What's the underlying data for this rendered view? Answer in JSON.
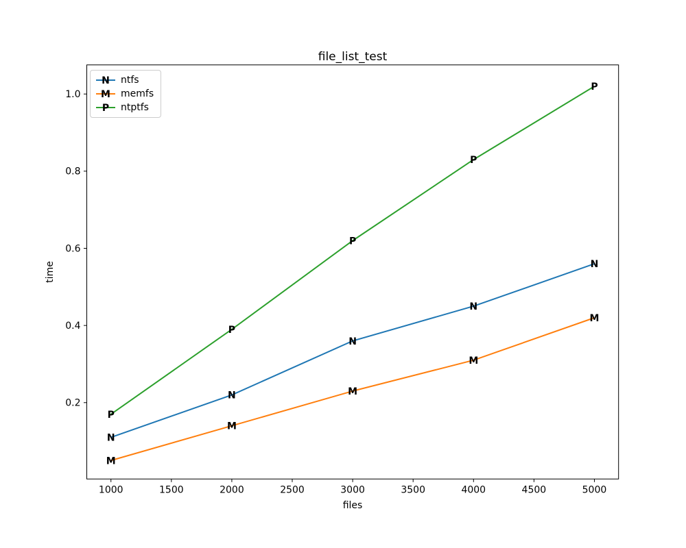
{
  "chart_data": {
    "type": "line",
    "title": "file_list_test",
    "xlabel": "files",
    "ylabel": "time",
    "x": [
      1000,
      2000,
      3000,
      4000,
      5000
    ],
    "series": [
      {
        "name": "ntfs",
        "marker": "N",
        "color": "#1f77b4",
        "values": [
          0.11,
          0.22,
          0.36,
          0.45,
          0.56
        ]
      },
      {
        "name": "memfs",
        "marker": "M",
        "color": "#ff7f0e",
        "values": [
          0.05,
          0.14,
          0.23,
          0.31,
          0.42
        ]
      },
      {
        "name": "ntptfs",
        "marker": "P",
        "color": "#2ca02c",
        "values": [
          0.17,
          0.39,
          0.62,
          0.83,
          1.02
        ]
      }
    ],
    "x_tick_values": [
      1000,
      1500,
      2000,
      2500,
      3000,
      3500,
      4000,
      4500,
      5000
    ],
    "x_tick_labels": [
      "1000",
      "1500",
      "2000",
      "2500",
      "3000",
      "3500",
      "4000",
      "4500",
      "5000"
    ],
    "y_tick_values": [
      0.2,
      0.4,
      0.6,
      0.8,
      1.0
    ],
    "y_tick_labels": [
      "0.2",
      "0.4",
      "0.6",
      "0.8",
      "1.0"
    ],
    "xlim": [
      800,
      5200
    ],
    "ylim": [
      0.002,
      1.0755
    ],
    "grid": false,
    "legend_position": "upper-left",
    "axis_color": "#000000",
    "background_color": "#ffffff"
  }
}
